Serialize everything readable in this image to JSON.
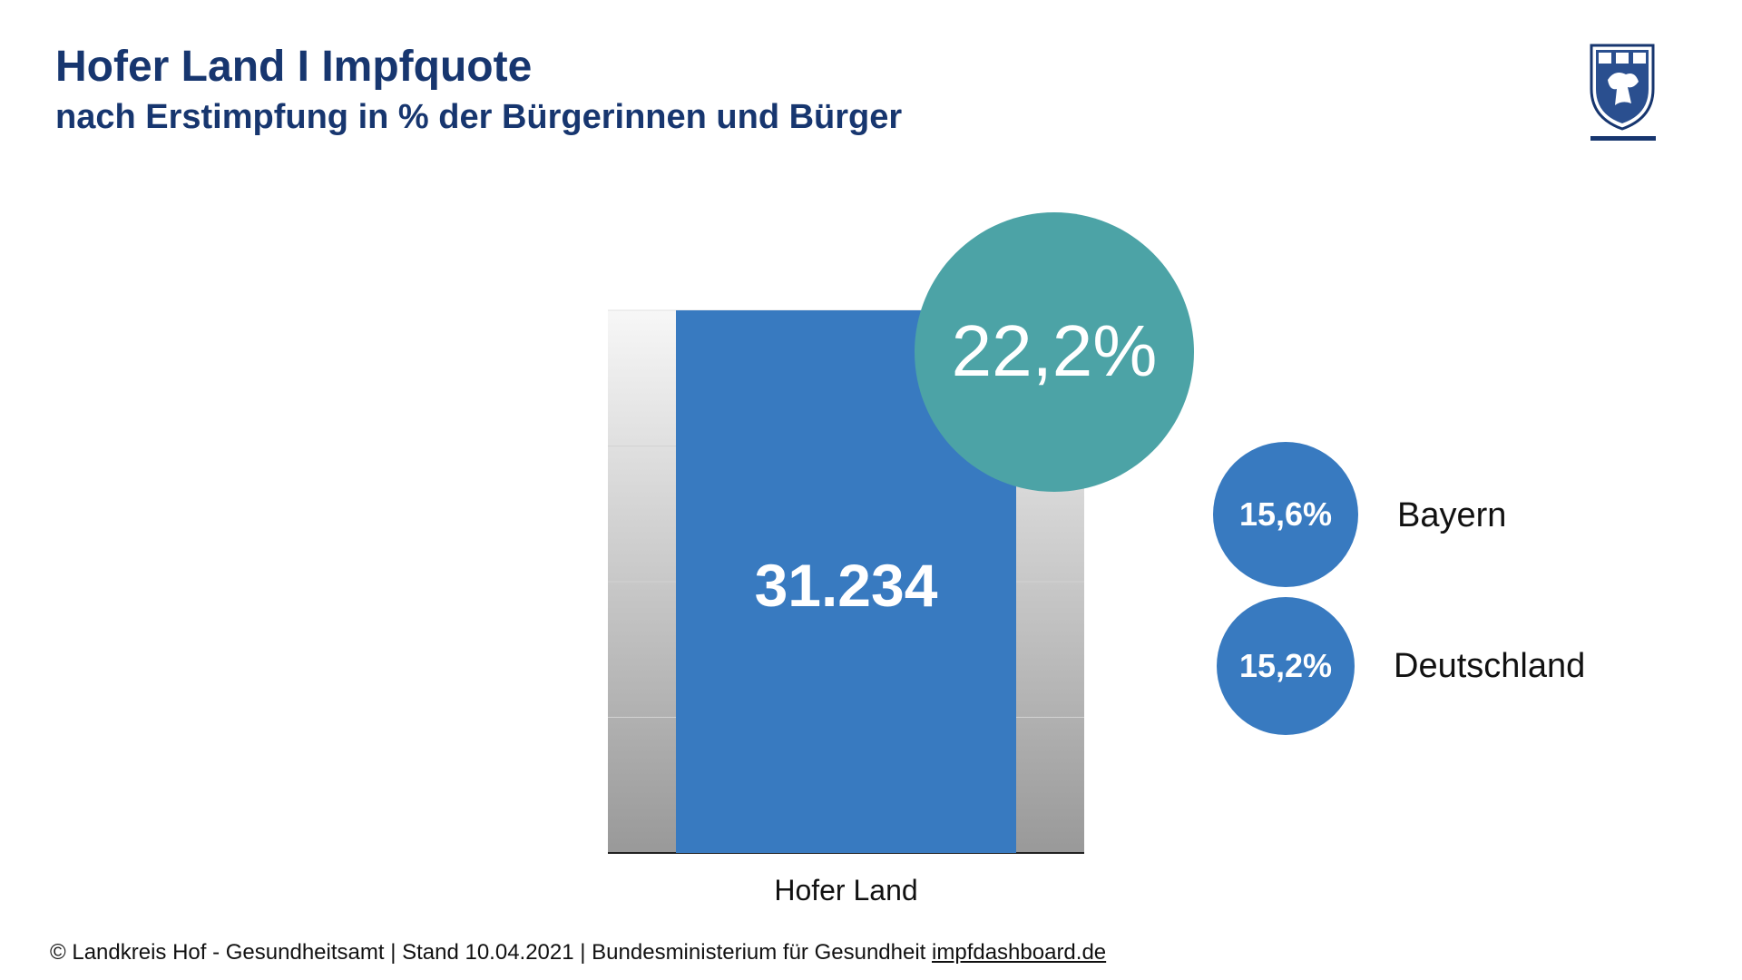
{
  "header": {
    "title": "Hofer Land I Impfquote",
    "subtitle": "nach Erstimpfung in % der Bürgerinnen und Bürger"
  },
  "colors": {
    "title": "#17366f",
    "bar": "#387ac0",
    "highlight_bubble": "#4ca3a6",
    "comparison_bubble": "#387ac0"
  },
  "chart_data": {
    "type": "bar",
    "categories": [
      "Hofer Land"
    ],
    "values": [
      31234
    ],
    "value_labels": [
      "31.234"
    ],
    "highlight": {
      "label": "22,2%",
      "value": 22.2
    },
    "comparisons": [
      {
        "name": "Bayern",
        "value": 15.6,
        "label": "15,6%"
      },
      {
        "name": "Deutschland",
        "value": 15.2,
        "label": "15,2%"
      }
    ]
  },
  "footer": {
    "text": "© Landkreis Hof - Gesundheitsamt | Stand 10.04.2021 | Bundesministerium für Gesundheit ",
    "link": "impfdashboard.de"
  }
}
